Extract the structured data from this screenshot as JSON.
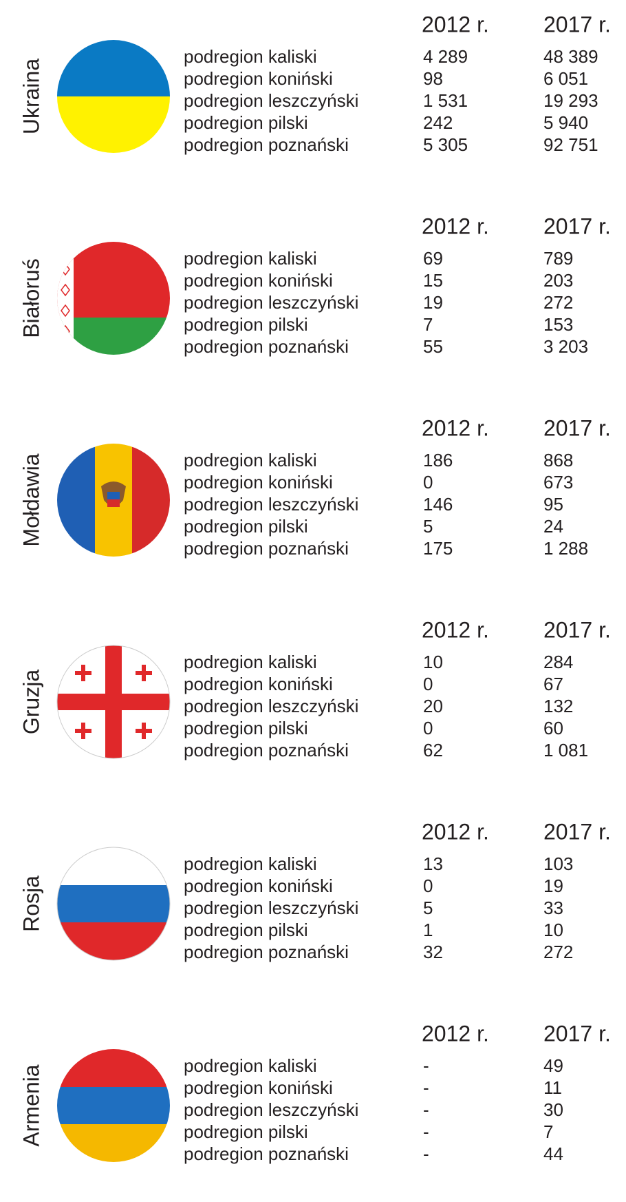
{
  "countries": [
    {
      "name": "Ukraina",
      "years": [
        "2012 r.",
        "2017 r."
      ],
      "rows": [
        [
          "podregion kaliski",
          "4 289",
          "48 389"
        ],
        [
          "podregion koniński",
          "98",
          "6 051"
        ],
        [
          "podregion leszczyński",
          "1 531",
          "19 293"
        ],
        [
          "podregion pilski",
          "242",
          "5 940"
        ],
        [
          "podregion poznański",
          "5 305",
          "92 751"
        ]
      ]
    },
    {
      "name": "Białoruś",
      "years": [
        "2012 r.",
        "2017 r."
      ],
      "rows": [
        [
          "podregion kaliski",
          "69",
          "789"
        ],
        [
          "podregion koniński",
          "15",
          "203"
        ],
        [
          "podregion leszczyński",
          "19",
          "272"
        ],
        [
          "podregion pilski",
          "7",
          "153"
        ],
        [
          "podregion poznański",
          "55",
          "3 203"
        ]
      ]
    },
    {
      "name": "Mołdawia",
      "years": [
        "2012 r.",
        "2017 r."
      ],
      "rows": [
        [
          "podregion kaliski",
          "186",
          "868"
        ],
        [
          "podregion koniński",
          "0",
          "673"
        ],
        [
          "podregion leszczyński",
          "146",
          "95"
        ],
        [
          "podregion pilski",
          "5",
          "24"
        ],
        [
          "podregion poznański",
          "175",
          "1 288"
        ]
      ]
    },
    {
      "name": "Gruzja",
      "years": [
        "2012 r.",
        "2017 r."
      ],
      "rows": [
        [
          "podregion kaliski",
          "10",
          "284"
        ],
        [
          "podregion koniński",
          "0",
          "67"
        ],
        [
          "podregion leszczyński",
          "20",
          "132"
        ],
        [
          "podregion pilski",
          "0",
          "60"
        ],
        [
          "podregion poznański",
          "62",
          "1 081"
        ]
      ]
    },
    {
      "name": "Rosja",
      "years": [
        "2012 r.",
        "2017 r."
      ],
      "rows": [
        [
          "podregion kaliski",
          "13",
          "103"
        ],
        [
          "podregion koniński",
          "0",
          "19"
        ],
        [
          "podregion leszczyński",
          "5",
          "33"
        ],
        [
          "podregion pilski",
          "1",
          "10"
        ],
        [
          "podregion poznański",
          "32",
          "272"
        ]
      ]
    },
    {
      "name": "Armenia",
      "years": [
        "2012 r.",
        "2017 r."
      ],
      "rows": [
        [
          "podregion kaliski",
          "-",
          "49"
        ],
        [
          "podregion koniński",
          "-",
          "11"
        ],
        [
          "podregion leszczyński",
          "-",
          "30"
        ],
        [
          "podregion pilski",
          "-",
          "7"
        ],
        [
          "podregion poznański",
          "-",
          "44"
        ]
      ]
    }
  ]
}
